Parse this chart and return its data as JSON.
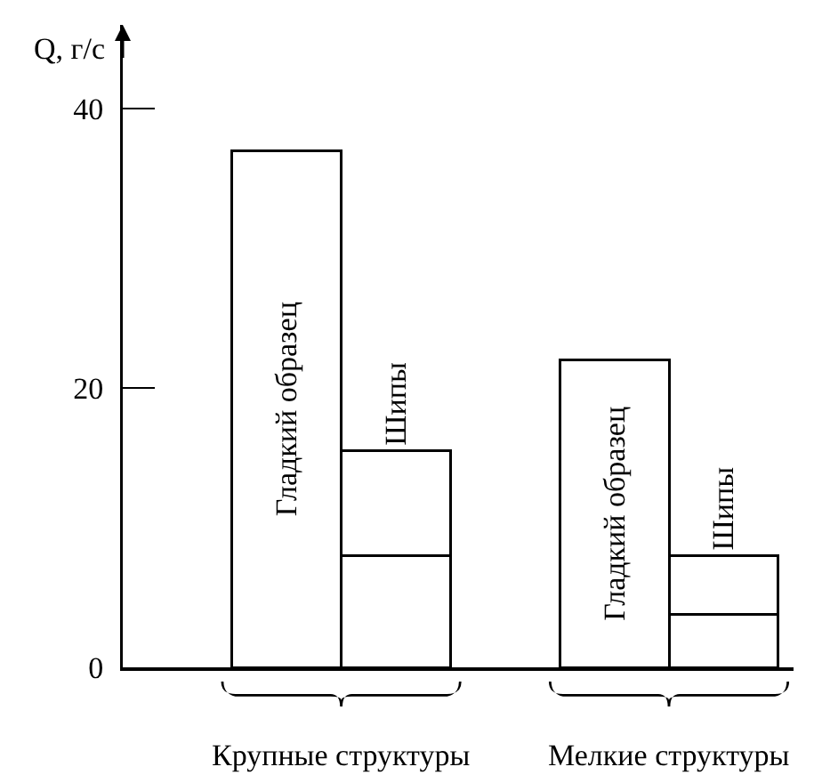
{
  "chart_data": {
    "type": "bar",
    "ylabel": "Q, г/с",
    "categories": [
      null,
      null,
      null,
      null,
      null,
      null
    ],
    "series": [
      {
        "name": "Гладкий образец",
        "color": "#ffffff",
        "values": [
          null,
          37,
          null,
          null,
          22,
          null
        ]
      },
      {
        "color": "#ffffff",
        "values": [
          null,
          null,
          8,
          null,
          null,
          3.8
        ]
      },
      {
        "name": "Шипы",
        "color": "#ffffff",
        "values": [
          null,
          null,
          7.5,
          null,
          null,
          4.2
        ]
      }
    ],
    "stacked": true,
    "annotations": [
      "Крупные структуры",
      "Мелкие структуры"
    ],
    "ylim": [
      0,
      46
    ],
    "yticks": [
      0,
      20,
      40
    ],
    "grid": false
  }
}
